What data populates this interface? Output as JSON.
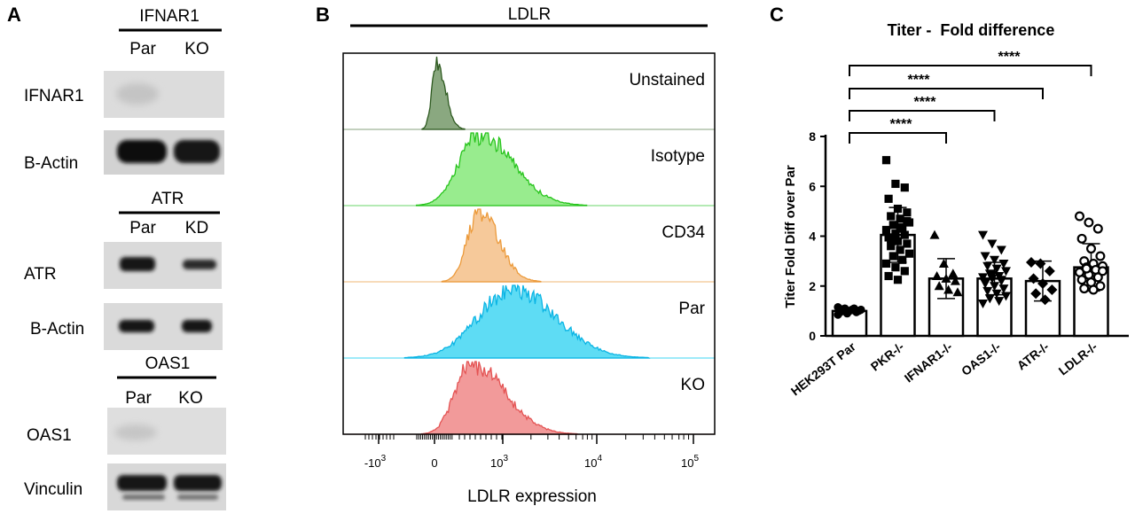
{
  "panel_a": {
    "letter": "A",
    "blots": [
      {
        "header": "IFNAR1",
        "lanes": [
          "Par",
          "KO"
        ],
        "rows": [
          "IFNAR1",
          "B-Actin"
        ]
      },
      {
        "header": "ATR",
        "lanes": [
          "Par",
          "KD"
        ],
        "rows": [
          "ATR",
          "B-Actin"
        ]
      },
      {
        "header": "OAS1",
        "lanes": [
          "Par",
          "KO"
        ],
        "rows": [
          "OAS1",
          "Vinculin"
        ]
      }
    ]
  },
  "panel_b": {
    "letter": "B",
    "header": "LDLR",
    "xlabel": "LDLR expression",
    "tick_labels": [
      {
        "base": "-10",
        "exp": "3"
      },
      {
        "base": "0",
        "exp": ""
      },
      {
        "base": "10",
        "exp": "3"
      },
      {
        "base": "10",
        "exp": "4"
      },
      {
        "base": "10",
        "exp": "5"
      }
    ],
    "tracks": [
      {
        "label": "Unstained",
        "fill": "#8aa880",
        "stroke": "#2e5a20",
        "baseline_color": "#9fb598"
      },
      {
        "label": "Isotype",
        "fill": "#98ec8e",
        "stroke": "#27c41c",
        "baseline_color": "#88dd88"
      },
      {
        "label": "CD34",
        "fill": "#f6c99a",
        "stroke": "#ec9a3a",
        "baseline_color": "#f2c590"
      },
      {
        "label": "Par",
        "fill": "#5edcf4",
        "stroke": "#0ab4e4",
        "baseline_color": "#66dff5"
      },
      {
        "label": "KO",
        "fill": "#f29a9a",
        "stroke": "#e45454",
        "baseline_color": "#f0a8a8"
      }
    ]
  },
  "panel_c": {
    "letter": "C",
    "chart_data": {
      "type": "bar",
      "title": "Titer -  Fold difference",
      "ylabel": "Titer Fold Diff over Par",
      "xlabel": "",
      "ylim": [
        0,
        8
      ],
      "yticks": [
        0,
        2,
        4,
        6,
        8
      ],
      "categories": [
        "HEK293T Par",
        "PKR-/-",
        "IFNAR1-/-",
        "OAS1-/-",
        "ATR-/-",
        "LDLR-/-"
      ],
      "values": [
        1.0,
        4.05,
        2.3,
        2.3,
        2.2,
        2.75
      ],
      "error": [
        0.1,
        1.1,
        0.8,
        0.65,
        0.8,
        0.95
      ],
      "markers": [
        "circle",
        "square",
        "triangle",
        "triangle-down",
        "diamond",
        "open-circle"
      ],
      "points": [
        [
          0.85,
          0.9,
          0.95,
          0.95,
          1.0,
          1.0,
          1.0,
          1.05,
          1.05,
          1.1,
          1.1,
          1.15,
          0.92,
          1.02,
          1.08
        ],
        [
          7.05,
          6.1,
          5.95,
          5.5,
          5.1,
          4.95,
          4.8,
          4.7,
          4.55,
          4.45,
          4.3,
          4.25,
          4.1,
          4.05,
          3.95,
          3.8,
          3.7,
          3.6,
          3.45,
          3.3,
          3.2,
          3.05,
          2.9,
          2.75,
          2.6,
          2.4,
          2.25,
          4.6,
          3.9,
          4.35
        ],
        [
          4.05,
          2.9,
          2.5,
          2.4,
          2.3,
          2.2,
          2.0,
          1.85,
          1.75
        ],
        [
          4.05,
          3.7,
          3.45,
          3.2,
          3.05,
          2.9,
          2.8,
          2.7,
          2.6,
          2.5,
          2.4,
          2.35,
          2.3,
          2.2,
          2.1,
          2.0,
          1.9,
          1.8,
          1.7,
          1.6,
          1.5,
          1.4,
          1.3,
          2.45,
          2.25
        ],
        [
          2.95,
          2.9,
          2.6,
          2.3,
          2.1,
          1.85,
          1.7,
          1.45
        ],
        [
          4.8,
          4.55,
          4.3,
          3.9,
          3.5,
          3.2,
          3.0,
          2.9,
          2.8,
          2.75,
          2.65,
          2.55,
          2.45,
          2.35,
          2.25,
          2.15,
          2.0,
          1.9,
          1.85,
          2.6,
          2.7
        ]
      ],
      "significance": [
        {
          "from": "HEK293T Par",
          "to": "IFNAR1-/-",
          "label": "****"
        },
        {
          "from": "HEK293T Par",
          "to": "OAS1-/-",
          "label": "****"
        },
        {
          "from": "HEK293T Par",
          "to": "ATR-/-",
          "label": "****"
        },
        {
          "from": "HEK293T Par",
          "to": "LDLR-/-",
          "label": "****"
        }
      ],
      "grid": false,
      "legend": "none"
    }
  }
}
